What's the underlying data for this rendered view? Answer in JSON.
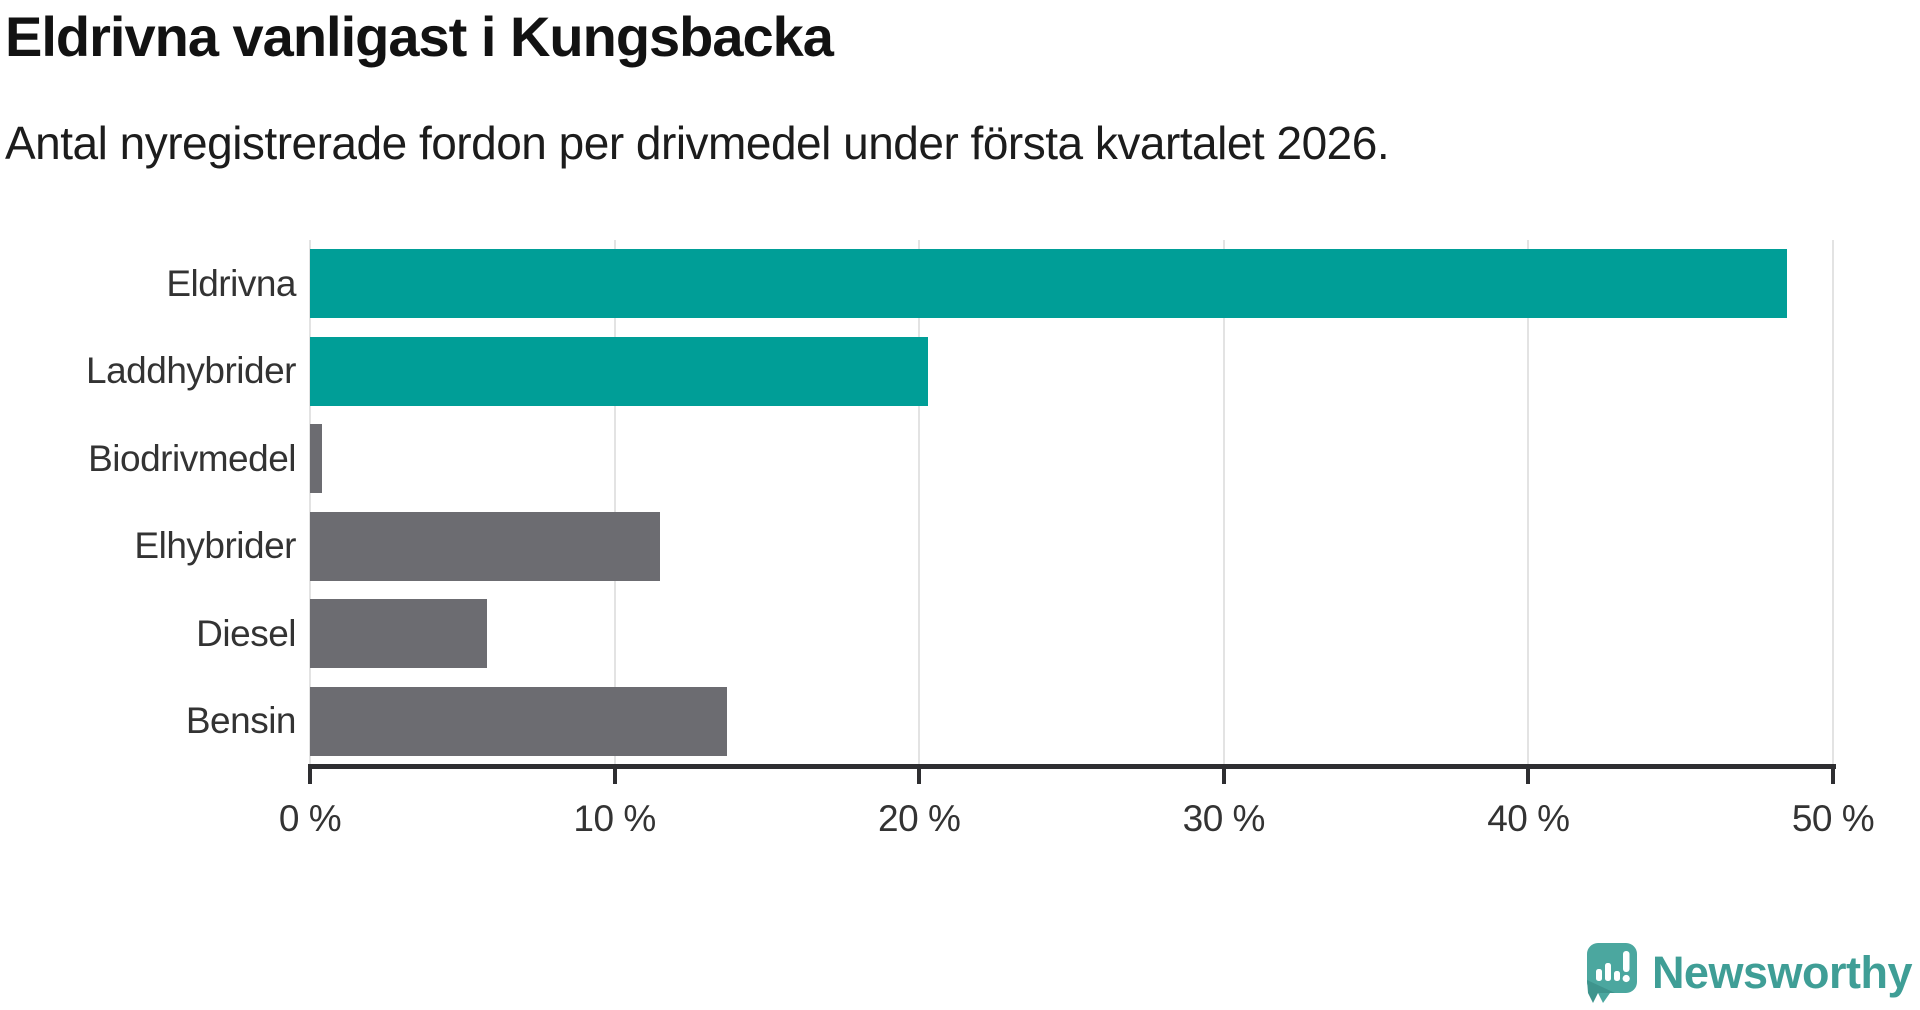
{
  "chart_data": {
    "type": "bar",
    "orientation": "horizontal",
    "title": "Eldrivna vanligast i Kungsbacka",
    "subtitle": "Antal nyregistrerade fordon per drivmedel under första kvartalet 2026.",
    "categories": [
      "Eldrivna",
      "Laddhybrider",
      "Biodrivmedel",
      "Elhybrider",
      "Diesel",
      "Bensin"
    ],
    "values": [
      48.5,
      20.3,
      0.4,
      11.5,
      5.8,
      13.7
    ],
    "unit": "%",
    "colors": [
      "#009E97",
      "#009E97",
      "#6C6C71",
      "#6C6C71",
      "#6C6C71",
      "#6C6C71"
    ],
    "highlight_color": "#009E97",
    "default_color": "#6C6C71",
    "xlim": [
      0,
      50
    ],
    "x_ticks": [
      0,
      10,
      20,
      30,
      40,
      50
    ],
    "x_tick_labels": [
      "0 %",
      "10 %",
      "20 %",
      "30 %",
      "40 %",
      "50 %"
    ],
    "grid": "vertical gridlines at each tick",
    "legend": "none"
  },
  "branding": {
    "logo_text": "Newsworthy",
    "logo_color": "#3F9E96",
    "icon_color": "#4BA79F",
    "icon": "newsworthy-speech-bubble-chart-icon"
  }
}
